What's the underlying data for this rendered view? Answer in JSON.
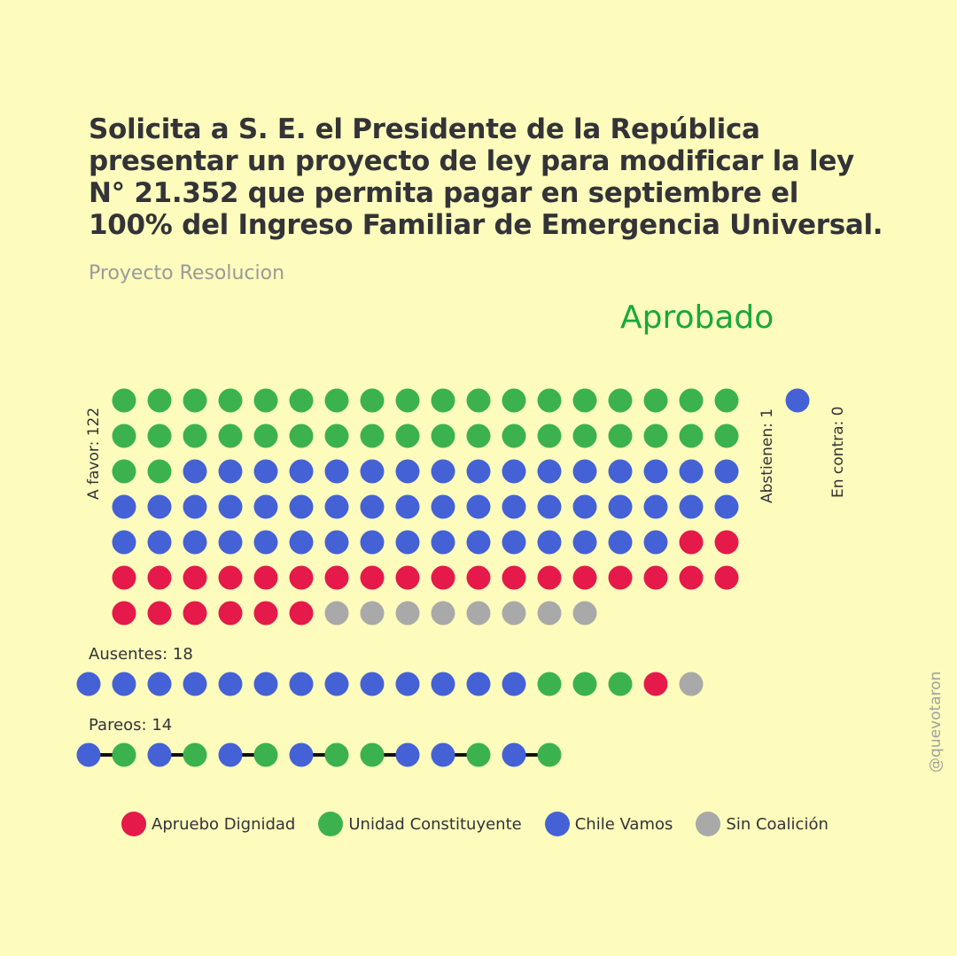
{
  "title": "Solicita a S. E. el Presidente de la República presentar un proyecto de ley para modificar la ley N° 21.352 que permita pagar en septiembre el 100% del Ingreso Familiar de Emergencia Universal.",
  "subtitle": "Proyecto Resolucion",
  "result": "Aprobado",
  "labels": {
    "a_favor": "A favor: 122",
    "abstienen": "Abstienen: 1",
    "en_contra": "En contra: 0",
    "ausentes": "Ausentes: 18",
    "pareos": "Pareos: 14"
  },
  "handle": "@quevotaron",
  "colors": {
    "background": "#fdfcbc",
    "result": "#19a83a",
    "apruebo_dignidad": "#e5194a",
    "unidad_constituyente": "#3bb24e",
    "chile_vamos": "#4561d6",
    "sin_coalicion": "#a9a9a9"
  },
  "legend": [
    {
      "label": "Apruebo Dignidad",
      "color": "#e5194a"
    },
    {
      "label": "Unidad Constituyente",
      "color": "#3bb24e"
    },
    {
      "label": "Chile Vamos",
      "color": "#4561d6"
    },
    {
      "label": "Sin Coalición",
      "color": "#a9a9a9"
    }
  ],
  "chart_data": {
    "type": "dot-matrix",
    "groups": [
      {
        "name": "A favor",
        "total": 122,
        "composition": {
          "Unidad Constituyente": 38,
          "Chile Vamos": 50,
          "Apruebo Dignidad": 26,
          "Sin Coalición": 8
        }
      },
      {
        "name": "Abstienen",
        "total": 1,
        "composition": {
          "Chile Vamos": 1
        }
      },
      {
        "name": "En contra",
        "total": 0,
        "composition": {}
      },
      {
        "name": "Ausentes",
        "total": 18,
        "composition": {
          "Chile Vamos": 13,
          "Unidad Constituyente": 3,
          "Apruebo Dignidad": 1,
          "Sin Coalición": 1
        }
      },
      {
        "name": "Pareos",
        "total": 14,
        "composition": {
          "Chile Vamos": 7,
          "Unidad Constituyente": 7
        }
      }
    ],
    "pareo_pairs": [
      [
        "Chile Vamos",
        "Unidad Constituyente"
      ],
      [
        "Chile Vamos",
        "Unidad Constituyente"
      ],
      [
        "Chile Vamos",
        "Unidad Constituyente"
      ],
      [
        "Chile Vamos",
        "Unidad Constituyente"
      ],
      [
        "Unidad Constituyente",
        "Chile Vamos"
      ],
      [
        "Chile Vamos",
        "Unidad Constituyente"
      ],
      [
        "Chile Vamos",
        "Unidad Constituyente"
      ]
    ]
  }
}
